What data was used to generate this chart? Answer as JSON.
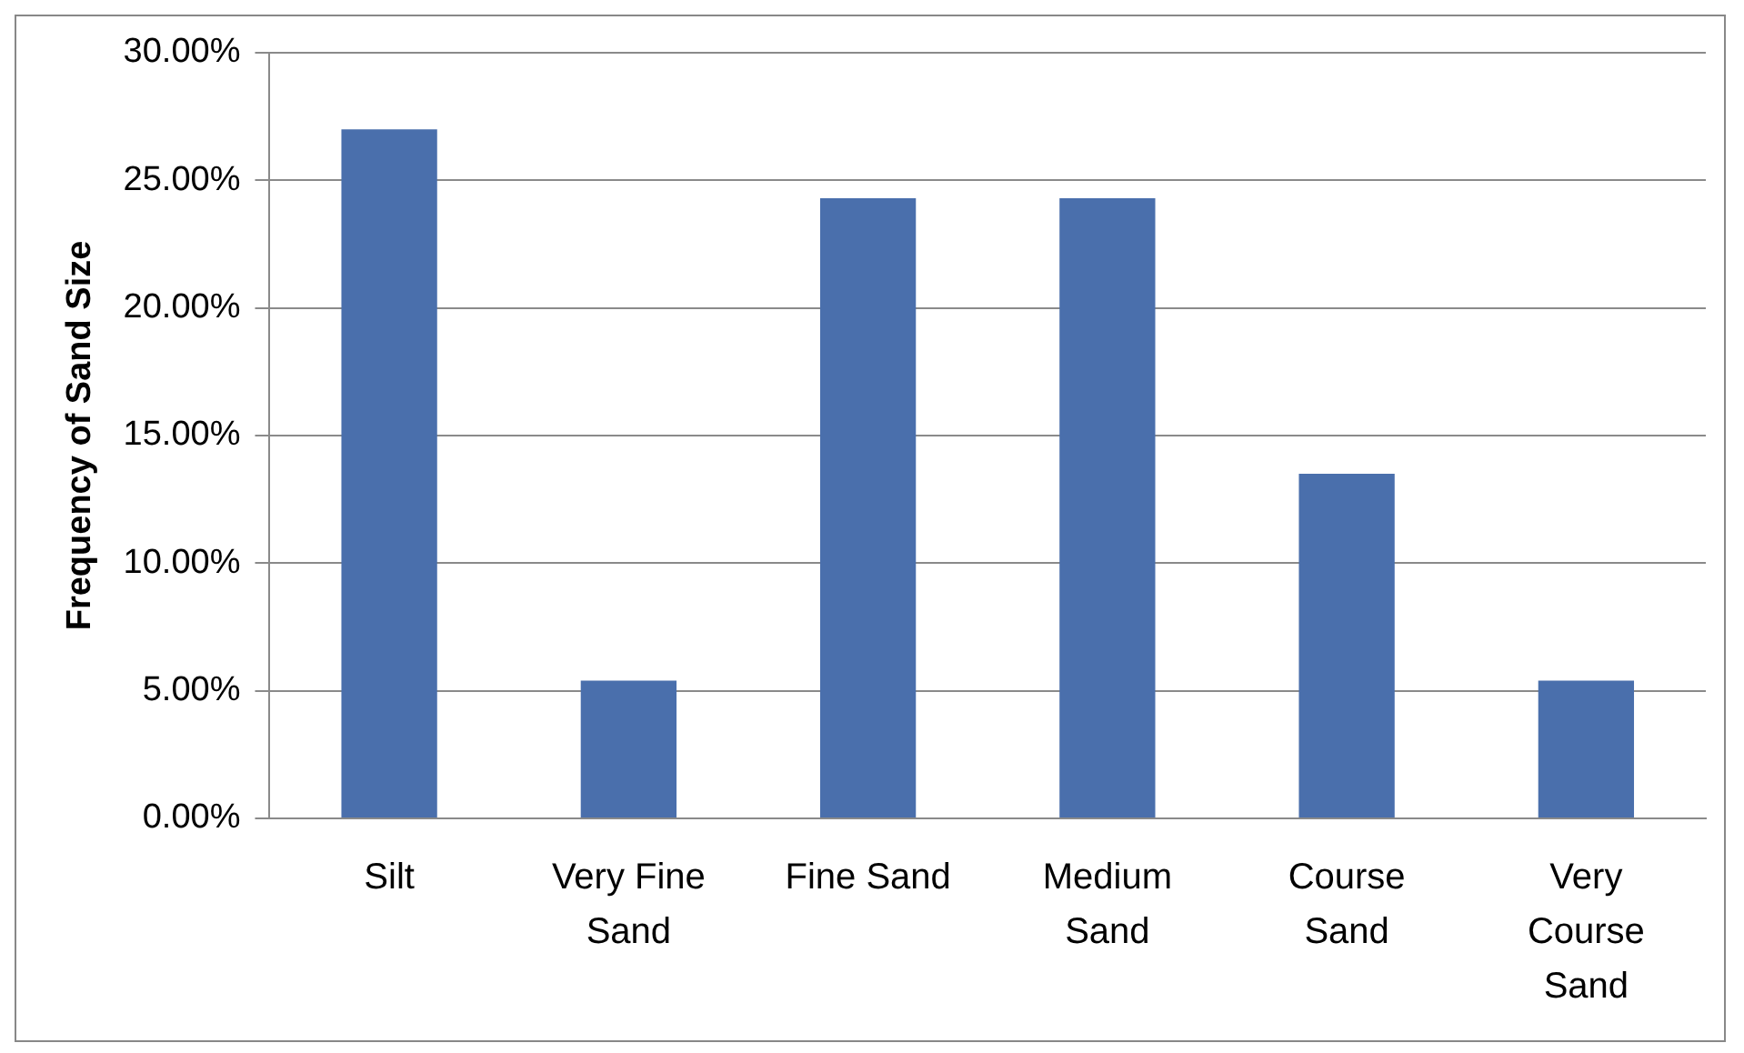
{
  "chart_data": {
    "type": "bar",
    "ylabel": "Frequency of Sand Size",
    "categories": [
      "Silt",
      "Very Fine Sand",
      "Fine Sand",
      "Medium Sand",
      "Course Sand",
      "Very Course Sand"
    ],
    "values": [
      27.0,
      5.4,
      24.3,
      24.3,
      13.5,
      5.4
    ],
    "color": "#4a6fac",
    "ylim": [
      0,
      30
    ],
    "yticks": [
      {
        "value": 0,
        "label": "0.00%"
      },
      {
        "value": 5,
        "label": "5.00%"
      },
      {
        "value": 10,
        "label": "10.00%"
      },
      {
        "value": 15,
        "label": "15.00%"
      },
      {
        "value": 20,
        "label": "20.00%"
      },
      {
        "value": 25,
        "label": "25.00%"
      },
      {
        "value": 30,
        "label": "30.00%"
      }
    ],
    "grid": "y"
  }
}
